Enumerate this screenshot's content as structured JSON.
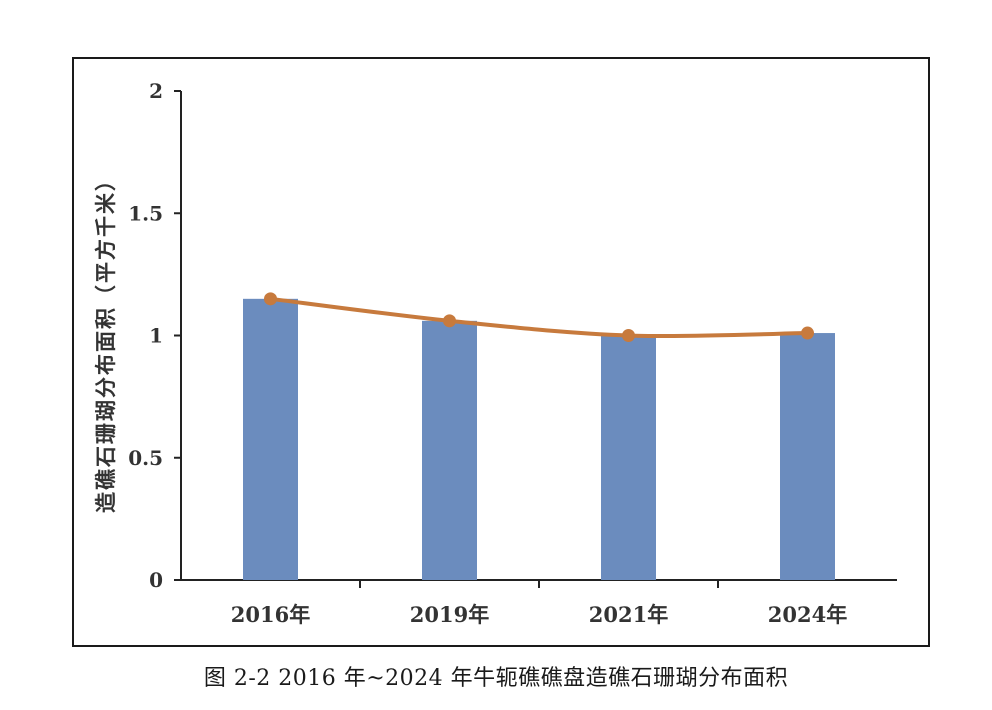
{
  "caption": "图 2-2 2016 年~2024 年牛轭礁礁盘造礁石珊瑚分布面积",
  "chart_data": {
    "type": "bar",
    "categories": [
      "2016年",
      "2019年",
      "2021年",
      "2024年"
    ],
    "values": [
      1.15,
      1.06,
      1.0,
      1.01
    ],
    "line_values": [
      1.15,
      1.06,
      1.0,
      1.01
    ],
    "title": "",
    "xlabel": "",
    "ylabel": "造礁石珊瑚分布面积（平方千米）",
    "ylim": [
      0,
      2
    ],
    "yticks": [
      "0",
      "0.5",
      "1",
      "1.5",
      "2"
    ],
    "grid": false,
    "bar_color": "#6b8cbe",
    "line_color": "#c77a3d"
  }
}
